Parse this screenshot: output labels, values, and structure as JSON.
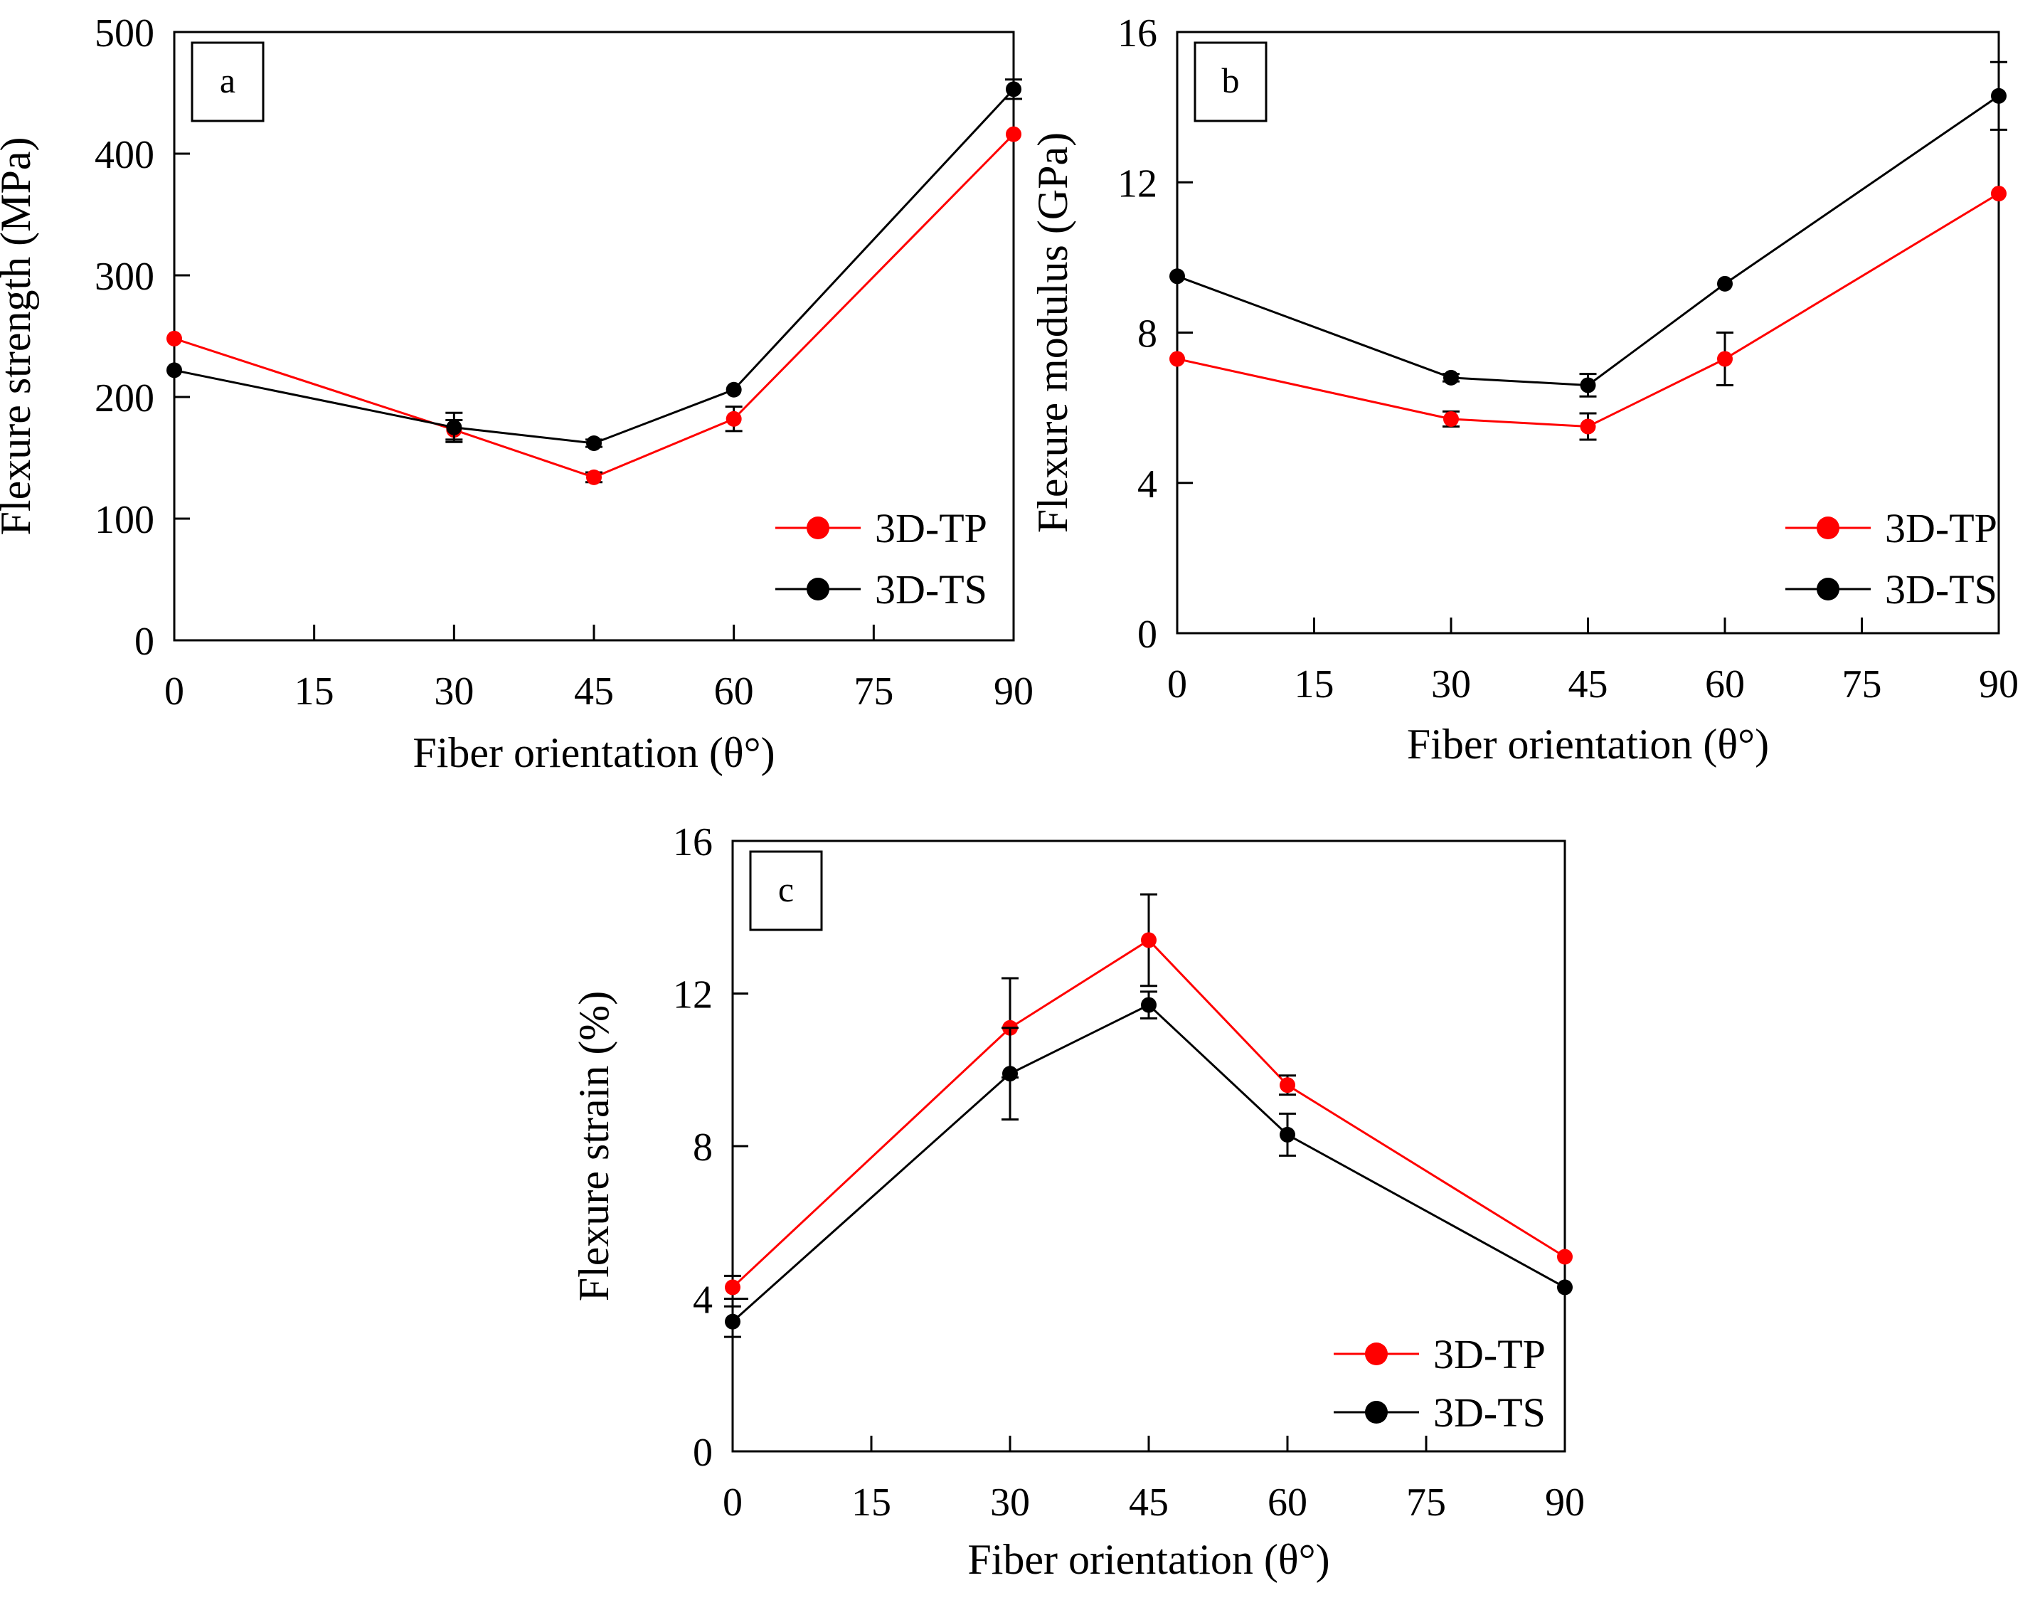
{
  "colors": {
    "series_tp": "#ff0000",
    "series_ts": "#000000",
    "axes": "#000000",
    "background": "#ffffff"
  },
  "chart_data": [
    {
      "panel": "a",
      "type": "line",
      "xlabel": "Fiber orientation (θ°)",
      "ylabel": "Flexure strength (MPa)",
      "xlim": [
        0,
        90
      ],
      "ylim": [
        0,
        500
      ],
      "xticks": [
        0,
        15,
        30,
        45,
        60,
        75,
        90
      ],
      "yticks": [
        0,
        100,
        200,
        300,
        400,
        500
      ],
      "grid": false,
      "legend_position": "bottom-right",
      "series": [
        {
          "name": "3D-TP",
          "color": "#ff0000",
          "x": [
            0,
            30,
            45,
            60,
            90
          ],
          "y": [
            248,
            173,
            134,
            182,
            416
          ],
          "error": [
            0,
            8,
            4,
            10,
            0
          ]
        },
        {
          "name": "3D-TS",
          "color": "#000000",
          "x": [
            0,
            30,
            45,
            60,
            90
          ],
          "y": [
            222,
            175,
            162,
            206,
            453
          ],
          "error": [
            0,
            12,
            3,
            0,
            8
          ]
        }
      ]
    },
    {
      "panel": "b",
      "type": "line",
      "xlabel": "Fiber orientation (θ°)",
      "ylabel": "Flexure modulus (GPa)",
      "xlim": [
        0,
        90
      ],
      "ylim": [
        0,
        16
      ],
      "xticks": [
        0,
        15,
        30,
        45,
        60,
        75,
        90
      ],
      "yticks": [
        0,
        4,
        8,
        12,
        16
      ],
      "grid": false,
      "legend_position": "bottom-right",
      "series": [
        {
          "name": "3D-TP",
          "color": "#ff0000",
          "x": [
            0,
            30,
            45,
            60,
            90
          ],
          "y": [
            7.3,
            5.7,
            5.5,
            7.3,
            11.7
          ],
          "error": [
            0,
            0.2,
            0.35,
            0.7,
            0
          ]
        },
        {
          "name": "3D-TS",
          "color": "#000000",
          "x": [
            0,
            30,
            45,
            60,
            90
          ],
          "y": [
            9.5,
            6.8,
            6.6,
            9.3,
            14.3
          ],
          "error": [
            0,
            0.1,
            0.3,
            0,
            0.9
          ]
        }
      ]
    },
    {
      "panel": "c",
      "type": "line",
      "xlabel": "Fiber orientation (θ°)",
      "ylabel": "Flexure strain (%)",
      "xlim": [
        0,
        90
      ],
      "ylim": [
        0,
        16
      ],
      "xticks": [
        0,
        15,
        30,
        45,
        60,
        75,
        90
      ],
      "yticks": [
        0,
        4,
        8,
        12,
        16
      ],
      "grid": false,
      "legend_position": "bottom-right",
      "series": [
        {
          "name": "3D-TP",
          "color": "#ff0000",
          "x": [
            0,
            30,
            45,
            60,
            90
          ],
          "y": [
            4.3,
            11.1,
            13.4,
            9.6,
            5.1
          ],
          "error": [
            0.3,
            1.3,
            1.2,
            0.25,
            0
          ]
        },
        {
          "name": "3D-TS",
          "color": "#000000",
          "x": [
            0,
            30,
            45,
            60,
            90
          ],
          "y": [
            3.4,
            9.9,
            11.7,
            8.3,
            4.3
          ],
          "error": [
            0.4,
            1.2,
            0.35,
            0.55,
            0
          ]
        }
      ]
    }
  ]
}
